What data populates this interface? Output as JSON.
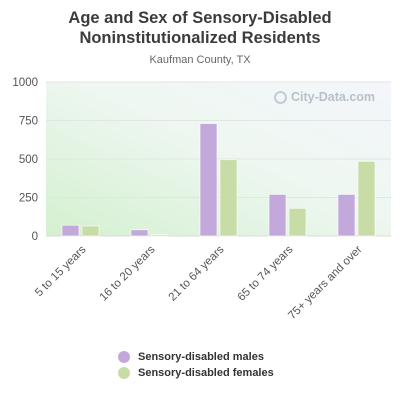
{
  "chart_data": {
    "type": "bar",
    "title": "Age and Sex of Sensory-Disabled Noninstitutionalized Residents",
    "subtitle": "Kaufman County, TX",
    "categories": [
      "5 to 15 years",
      "16 to 20 years",
      "21 to 64 years",
      "65 to 74 years",
      "75+ years and over"
    ],
    "series": [
      {
        "name": "Sensory-disabled males",
        "color": "#c3a8db",
        "values": [
          70,
          40,
          730,
          270,
          270
        ]
      },
      {
        "name": "Sensory-disabled females",
        "color": "#c8dca8",
        "values": [
          65,
          8,
          495,
          180,
          485
        ]
      }
    ],
    "yticks": [
      0,
      250,
      500,
      750,
      1000
    ],
    "ylim": [
      0,
      1000
    ],
    "xlabel": "",
    "ylabel": "",
    "legend_position": "bottom",
    "grid": true
  },
  "watermark": {
    "text": "City-Data.com",
    "icon": "city-data-logo-icon"
  }
}
